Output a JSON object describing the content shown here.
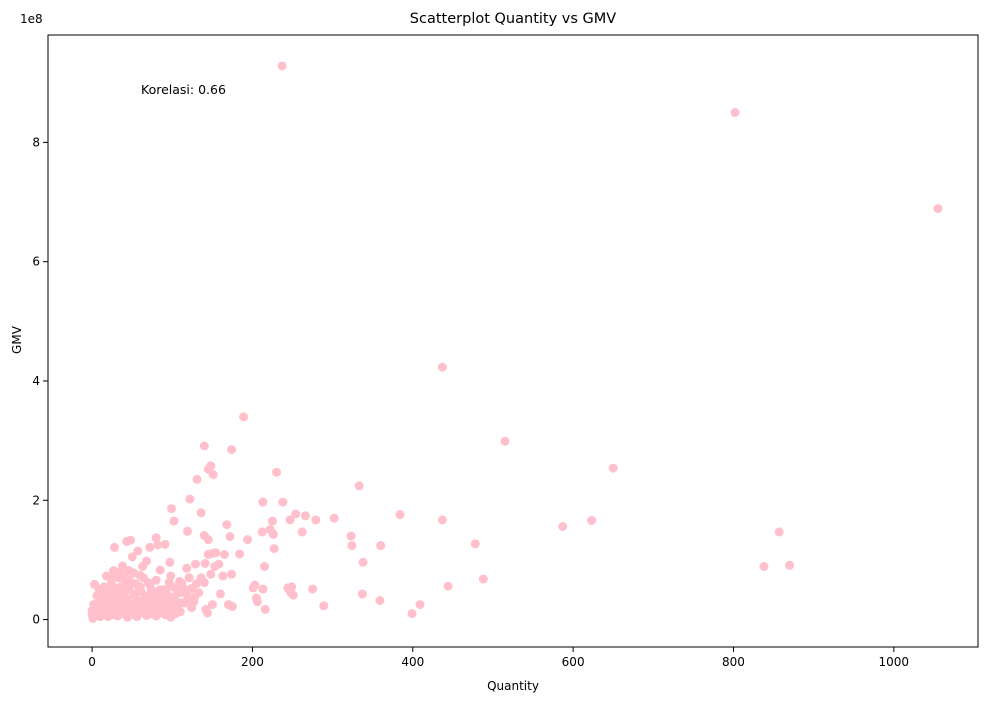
{
  "chart_data": {
    "type": "scatter",
    "title": "Scatterplot Quantity vs GMV",
    "xlabel": "Quantity",
    "ylabel": "GMV",
    "y_offset_label": "1e8",
    "annotation": "Korelasi: 0.66",
    "xlim": [
      -55,
      1105
    ],
    "ylim": [
      -0.46,
      9.8
    ],
    "x_ticks": [
      0,
      200,
      400,
      600,
      800,
      1000
    ],
    "y_ticks": [
      0,
      2,
      4,
      6,
      8
    ],
    "x_tick_labels": [
      "0",
      "200",
      "400",
      "600",
      "800",
      "1000"
    ],
    "y_tick_labels": [
      "0",
      "2",
      "4",
      "6",
      "8"
    ],
    "grid": false,
    "legend": "none",
    "marker_color": "#ffc0cb",
    "y_units": "1e8",
    "points": [
      [
        237,
        9.28
      ],
      [
        802,
        8.5
      ],
      [
        1055,
        6.89
      ],
      [
        437,
        4.23
      ],
      [
        189,
        3.4
      ],
      [
        515,
        2.99
      ],
      [
        650,
        2.54
      ],
      [
        140,
        2.91
      ],
      [
        174,
        2.85
      ],
      [
        230,
        2.47
      ],
      [
        148,
        2.58
      ],
      [
        145,
        2.52
      ],
      [
        151,
        2.43
      ],
      [
        131,
        2.35
      ],
      [
        122,
        2.02
      ],
      [
        333,
        2.24
      ],
      [
        213,
        1.97
      ],
      [
        238,
        1.97
      ],
      [
        254,
        1.77
      ],
      [
        266,
        1.74
      ],
      [
        247,
        1.67
      ],
      [
        279,
        1.67
      ],
      [
        302,
        1.7
      ],
      [
        384,
        1.76
      ],
      [
        437,
        1.67
      ],
      [
        587,
        1.56
      ],
      [
        623,
        1.66
      ],
      [
        857,
        1.47
      ],
      [
        838,
        0.89
      ],
      [
        870,
        0.91
      ],
      [
        99,
        1.86
      ],
      [
        102,
        1.65
      ],
      [
        136,
        1.79
      ],
      [
        168,
        1.59
      ],
      [
        119,
        1.48
      ],
      [
        212,
        1.47
      ],
      [
        222,
        1.51
      ],
      [
        225,
        1.65
      ],
      [
        226,
        1.43
      ],
      [
        262,
        1.47
      ],
      [
        323,
        1.4
      ],
      [
        324,
        1.24
      ],
      [
        360,
        1.24
      ],
      [
        478,
        1.27
      ],
      [
        227,
        1.19
      ],
      [
        48,
        1.33
      ],
      [
        43,
        1.31
      ],
      [
        28,
        1.21
      ],
      [
        57,
        1.15
      ],
      [
        72,
        1.21
      ],
      [
        80,
        1.37
      ],
      [
        82,
        1.25
      ],
      [
        91,
        1.26
      ],
      [
        140,
        1.41
      ],
      [
        145,
        1.34
      ],
      [
        172,
        1.39
      ],
      [
        194,
        1.34
      ],
      [
        150,
        1.11
      ],
      [
        154,
        1.12
      ],
      [
        145,
        1.09
      ],
      [
        165,
        1.09
      ],
      [
        184,
        1.1
      ],
      [
        215,
        0.89
      ],
      [
        338,
        0.96
      ],
      [
        488,
        0.68
      ],
      [
        444,
        0.56
      ],
      [
        409,
        0.25
      ],
      [
        399,
        0.1
      ],
      [
        359,
        0.32
      ],
      [
        337,
        0.43
      ],
      [
        289,
        0.23
      ],
      [
        275,
        0.51
      ],
      [
        249,
        0.55
      ],
      [
        251,
        0.41
      ],
      [
        244,
        0.53
      ],
      [
        248,
        0.45
      ],
      [
        203,
        0.58
      ],
      [
        201,
        0.53
      ],
      [
        213,
        0.51
      ],
      [
        205,
        0.36
      ],
      [
        206,
        0.3
      ],
      [
        216,
        0.17
      ],
      [
        174,
        0.76
      ],
      [
        163,
        0.73
      ],
      [
        158,
        0.93
      ],
      [
        129,
        0.93
      ],
      [
        141,
        0.94
      ],
      [
        160,
        0.43
      ],
      [
        150,
        0.25
      ],
      [
        142,
        0.17
      ],
      [
        144,
        0.11
      ],
      [
        170,
        0.25
      ],
      [
        175,
        0.22
      ],
      [
        153,
        0.89
      ],
      [
        148,
        0.76
      ],
      [
        140,
        0.62
      ],
      [
        128,
        0.38
      ],
      [
        124,
        0.2
      ],
      [
        118,
        0.86
      ],
      [
        109,
        0.64
      ],
      [
        106,
        0.5
      ],
      [
        112,
        0.28
      ],
      [
        97,
        0.96
      ],
      [
        98,
        0.73
      ],
      [
        92,
        0.45
      ],
      [
        85,
        0.83
      ],
      [
        80,
        0.66
      ],
      [
        74,
        0.5
      ],
      [
        68,
        0.98
      ],
      [
        63,
        0.89
      ],
      [
        60,
        0.74
      ],
      [
        55,
        0.6
      ],
      [
        50,
        1.05
      ],
      [
        46,
        0.82
      ],
      [
        42,
        0.63
      ],
      [
        38,
        0.9
      ],
      [
        33,
        0.7
      ],
      [
        30,
        0.52
      ],
      [
        27,
        0.82
      ],
      [
        24,
        0.61
      ],
      [
        21,
        0.45
      ],
      [
        18,
        0.73
      ],
      [
        15,
        0.55
      ],
      [
        12,
        0.34
      ],
      [
        9,
        0.5
      ],
      [
        6,
        0.4
      ],
      [
        3,
        0.59
      ],
      [
        2,
        0.25
      ],
      [
        0,
        0.08
      ],
      [
        0,
        0.15
      ],
      [
        1,
        0.02
      ],
      [
        4,
        0.1
      ],
      [
        7,
        0.2
      ],
      [
        10,
        0.05
      ],
      [
        13,
        0.15
      ],
      [
        16,
        0.25
      ],
      [
        19,
        0.1
      ],
      [
        22,
        0.3
      ],
      [
        25,
        0.2
      ],
      [
        28,
        0.38
      ],
      [
        31,
        0.12
      ],
      [
        34,
        0.28
      ],
      [
        37,
        0.42
      ],
      [
        40,
        0.18
      ],
      [
        43,
        0.35
      ],
      [
        46,
        0.52
      ],
      [
        49,
        0.24
      ],
      [
        52,
        0.4
      ],
      [
        55,
        0.15
      ],
      [
        58,
        0.31
      ],
      [
        61,
        0.47
      ],
      [
        64,
        0.22
      ],
      [
        67,
        0.38
      ],
      [
        70,
        0.12
      ],
      [
        73,
        0.29
      ],
      [
        76,
        0.44
      ],
      [
        79,
        0.18
      ],
      [
        82,
        0.34
      ],
      [
        85,
        0.5
      ],
      [
        88,
        0.26
      ],
      [
        91,
        0.12
      ],
      [
        94,
        0.4
      ],
      [
        97,
        0.22
      ],
      [
        100,
        0.55
      ],
      [
        103,
        0.33
      ],
      [
        106,
        0.16
      ],
      [
        109,
        0.45
      ],
      [
        112,
        0.6
      ],
      [
        115,
        0.28
      ],
      [
        118,
        0.42
      ],
      [
        121,
        0.7
      ],
      [
        124,
        0.52
      ],
      [
        127,
        0.3
      ],
      [
        130,
        0.6
      ],
      [
        133,
        0.45
      ],
      [
        136,
        0.7
      ],
      [
        20,
        0.05
      ],
      [
        26,
        0.08
      ],
      [
        32,
        0.06
      ],
      [
        38,
        0.1
      ],
      [
        44,
        0.04
      ],
      [
        50,
        0.09
      ],
      [
        56,
        0.05
      ],
      [
        62,
        0.12
      ],
      [
        68,
        0.07
      ],
      [
        74,
        0.1
      ],
      [
        80,
        0.06
      ],
      [
        86,
        0.11
      ],
      [
        92,
        0.08
      ],
      [
        98,
        0.04
      ],
      [
        104,
        0.1
      ],
      [
        110,
        0.13
      ],
      [
        8,
        0.3
      ],
      [
        14,
        0.42
      ],
      [
        18,
        0.2
      ],
      [
        24,
        0.48
      ],
      [
        30,
        0.36
      ],
      [
        36,
        0.55
      ],
      [
        42,
        0.48
      ],
      [
        48,
        0.62
      ],
      [
        54,
        0.43
      ],
      [
        60,
        0.55
      ],
      [
        66,
        0.4
      ],
      [
        72,
        0.58
      ],
      [
        78,
        0.46
      ],
      [
        84,
        0.32
      ],
      [
        90,
        0.5
      ],
      [
        96,
        0.62
      ],
      [
        102,
        0.38
      ],
      [
        108,
        0.28
      ],
      [
        114,
        0.52
      ],
      [
        120,
        0.34
      ],
      [
        26,
        0.72
      ],
      [
        34,
        0.8
      ],
      [
        40,
        0.74
      ],
      [
        46,
        0.67
      ],
      [
        52,
        0.78
      ],
      [
        58,
        0.56
      ],
      [
        64,
        0.7
      ],
      [
        70,
        0.62
      ],
      [
        76,
        0.36
      ],
      [
        82,
        0.25
      ],
      [
        88,
        0.4
      ],
      [
        94,
        0.3
      ],
      [
        100,
        0.18
      ],
      [
        5,
        0.12
      ],
      [
        11,
        0.22
      ],
      [
        17,
        0.35
      ],
      [
        23,
        0.15
      ],
      [
        29,
        0.26
      ],
      [
        35,
        0.18
      ],
      [
        41,
        0.3
      ],
      [
        47,
        0.14
      ],
      [
        53,
        0.27
      ],
      [
        59,
        0.2
      ],
      [
        65,
        0.32
      ],
      [
        71,
        0.24
      ],
      [
        77,
        0.16
      ],
      [
        83,
        0.22
      ],
      [
        89,
        0.34
      ],
      [
        95,
        0.15
      ]
    ]
  }
}
